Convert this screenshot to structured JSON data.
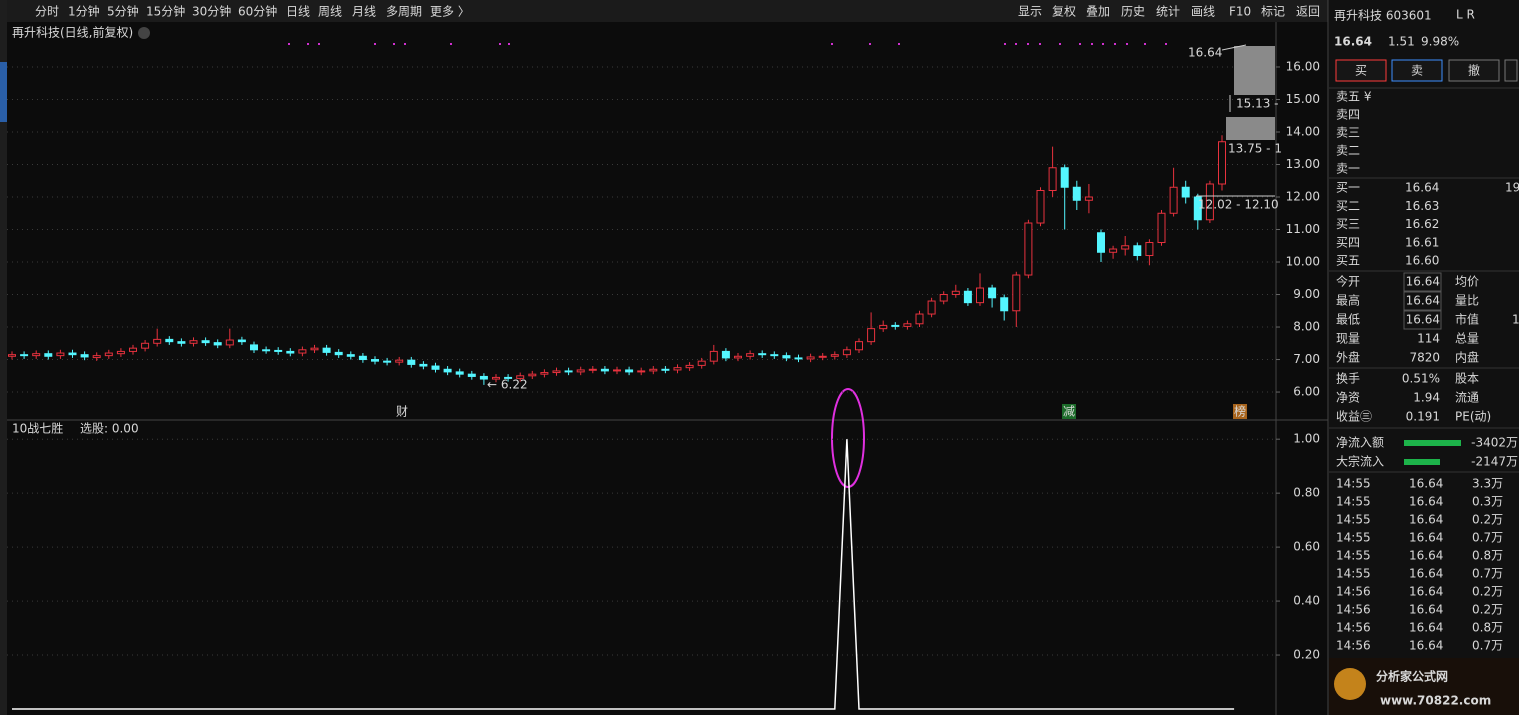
{
  "toolbar": {
    "periods": [
      "分时",
      "1分钟",
      "5分钟",
      "15分钟",
      "30分钟",
      "60分钟",
      "日线",
      "周线",
      "月线",
      "多周期",
      "更多 〉"
    ],
    "active_period": 6,
    "tools": [
      "显示",
      "复权",
      "叠加",
      "历史",
      "统计",
      "画线",
      "F10",
      "标记",
      "返回"
    ]
  },
  "chart_data": [
    {
      "type": "candlestick",
      "title": "再升科技(日线,前复权)",
      "open": [
        7.1,
        7.15,
        7.12,
        7.18,
        7.12,
        7.2,
        7.15,
        7.06,
        7.12,
        7.18,
        7.25,
        7.35,
        7.5,
        7.62,
        7.55,
        7.5,
        7.58,
        7.52,
        7.45,
        7.6,
        7.45,
        7.3,
        7.28,
        7.25,
        7.2,
        7.3,
        7.35,
        7.22,
        7.15,
        7.1,
        7.0,
        6.95,
        6.92,
        6.98,
        6.85,
        6.8,
        6.7,
        6.62,
        6.55,
        6.48,
        6.4,
        6.45,
        6.42,
        6.5,
        6.55,
        6.6,
        6.65,
        6.62,
        6.68,
        6.7,
        6.65,
        6.68,
        6.62,
        6.65,
        6.7,
        6.68,
        6.75,
        6.82,
        6.95,
        7.25,
        7.05,
        7.1,
        7.18,
        7.15,
        7.12,
        7.05,
        7.02,
        7.08,
        7.1,
        7.15,
        7.3,
        7.55,
        7.95,
        8.05,
        8.02,
        8.1,
        8.4,
        8.8,
        9.0,
        9.1,
        8.75,
        9.2,
        8.9,
        8.5,
        9.6,
        11.2,
        12.2,
        12.9,
        12.3,
        11.9,
        10.9,
        10.3,
        10.4,
        10.5,
        10.2,
        10.6,
        11.5,
        12.3,
        12.0,
        11.3,
        12.4
      ],
      "high": [
        7.25,
        7.25,
        7.28,
        7.28,
        7.3,
        7.3,
        7.25,
        7.22,
        7.3,
        7.35,
        7.45,
        7.6,
        7.95,
        7.72,
        7.65,
        7.68,
        7.68,
        7.62,
        7.95,
        7.7,
        7.55,
        7.4,
        7.38,
        7.35,
        7.4,
        7.45,
        7.45,
        7.32,
        7.25,
        7.2,
        7.1,
        7.05,
        7.08,
        7.08,
        6.95,
        6.9,
        6.8,
        6.72,
        6.65,
        6.58,
        6.55,
        6.55,
        6.6,
        6.65,
        6.7,
        6.75,
        6.75,
        6.78,
        6.8,
        6.8,
        6.78,
        6.78,
        6.75,
        6.8,
        6.8,
        6.85,
        6.92,
        7.05,
        7.45,
        7.35,
        7.2,
        7.28,
        7.28,
        7.25,
        7.22,
        7.15,
        7.18,
        7.2,
        7.25,
        7.4,
        7.65,
        8.45,
        8.2,
        8.15,
        8.2,
        8.5,
        8.9,
        9.1,
        9.3,
        9.2,
        9.65,
        9.3,
        9.0,
        9.7,
        11.3,
        12.3,
        13.55,
        13.0,
        12.5,
        12.4,
        11.0,
        10.5,
        10.8,
        10.6,
        10.7,
        11.6,
        12.9,
        12.5,
        12.1,
        12.5,
        13.9
      ],
      "low": [
        7.0,
        7.02,
        7.02,
        7.0,
        7.02,
        7.05,
        6.98,
        6.96,
        7.02,
        7.08,
        7.15,
        7.25,
        7.4,
        7.45,
        7.4,
        7.4,
        7.42,
        7.35,
        7.35,
        7.45,
        7.2,
        7.18,
        7.15,
        7.1,
        7.1,
        7.2,
        7.12,
        7.05,
        7.0,
        6.9,
        6.85,
        6.82,
        6.82,
        6.75,
        6.7,
        6.6,
        6.52,
        6.45,
        6.38,
        6.22,
        6.3,
        6.32,
        6.32,
        6.4,
        6.45,
        6.5,
        6.52,
        6.52,
        6.58,
        6.55,
        6.55,
        6.52,
        6.52,
        6.55,
        6.58,
        6.58,
        6.65,
        6.72,
        6.85,
        6.95,
        6.95,
        7.0,
        7.05,
        7.02,
        6.95,
        6.92,
        6.92,
        6.98,
        7.0,
        7.05,
        7.2,
        7.45,
        7.85,
        7.92,
        7.92,
        8.0,
        8.3,
        8.7,
        8.9,
        8.65,
        8.65,
        8.6,
        8.2,
        8.0,
        9.5,
        11.1,
        12.0,
        11.0,
        11.6,
        11.5,
        10.0,
        10.1,
        10.2,
        10.05,
        9.9,
        10.5,
        11.4,
        11.8,
        11.0,
        11.2,
        12.2
      ],
      "close": [
        7.15,
        7.12,
        7.18,
        7.1,
        7.2,
        7.15,
        7.08,
        7.12,
        7.2,
        7.25,
        7.35,
        7.5,
        7.62,
        7.55,
        7.5,
        7.58,
        7.52,
        7.45,
        7.6,
        7.55,
        7.3,
        7.28,
        7.25,
        7.2,
        7.3,
        7.35,
        7.22,
        7.15,
        7.1,
        7.0,
        6.95,
        6.92,
        6.98,
        6.85,
        6.8,
        6.7,
        6.62,
        6.55,
        6.48,
        6.4,
        6.45,
        6.42,
        6.5,
        6.55,
        6.6,
        6.65,
        6.62,
        6.68,
        6.7,
        6.65,
        6.68,
        6.62,
        6.65,
        6.7,
        6.68,
        6.75,
        6.82,
        6.95,
        7.25,
        7.05,
        7.1,
        7.18,
        7.15,
        7.12,
        7.05,
        7.02,
        7.08,
        7.1,
        7.15,
        7.3,
        7.55,
        7.95,
        8.05,
        8.02,
        8.1,
        8.4,
        8.8,
        9.0,
        9.1,
        8.75,
        9.2,
        8.9,
        8.5,
        9.6,
        11.2,
        12.2,
        12.9,
        12.3,
        11.9,
        12.0,
        10.3,
        10.4,
        10.5,
        10.2,
        10.6,
        11.5,
        12.3,
        12.0,
        11.3,
        12.4,
        13.7
      ],
      "up_color": "#e8323e",
      "down_color": "#54f6ff",
      "ylim": [
        5.14,
        16.83
      ],
      "yticks": [
        {
          "value": 6,
          "label": "6.00"
        },
        {
          "value": 7,
          "label": "7.00"
        },
        {
          "value": 8,
          "label": "8.00"
        },
        {
          "value": 9,
          "label": "9.00"
        },
        {
          "value": 10,
          "label": "10.00"
        },
        {
          "value": 11,
          "label": "11.00"
        },
        {
          "value": 12,
          "label": "12.00"
        },
        {
          "value": 13,
          "label": "13.00"
        },
        {
          "value": 14,
          "label": "14.00"
        },
        {
          "value": 15,
          "label": "15.00"
        },
        {
          "value": 16,
          "label": "16.00"
        }
      ],
      "grid": true,
      "annotations": [
        "16.64",
        "15.13 -",
        "13.75 - 1",
        "12.02 - 12.10",
        "← 6.22"
      ],
      "markers": [
        "财",
        "减",
        "榜"
      ]
    },
    {
      "type": "line",
      "title": "10战七胜",
      "subtitle": "选股: 0.00",
      "color": "#ffffff",
      "values": [
        0,
        0,
        0,
        0,
        0,
        0,
        0,
        0,
        0,
        0,
        0,
        0,
        0,
        0,
        0,
        0,
        0,
        0,
        0,
        0,
        0,
        0,
        0,
        0,
        0,
        0,
        0,
        0,
        0,
        0,
        0,
        0,
        0,
        0,
        0,
        0,
        0,
        0,
        0,
        0,
        0,
        0,
        0,
        0,
        0,
        0,
        0,
        0,
        0,
        0,
        0,
        0,
        0,
        0,
        0,
        0,
        0,
        0,
        0,
        0,
        0,
        0,
        0,
        0,
        0,
        0,
        0,
        0,
        0,
        1,
        0,
        0,
        0,
        0,
        0,
        0,
        0,
        0,
        0,
        0,
        0,
        0,
        0,
        0,
        0,
        0,
        0,
        0,
        0,
        0,
        0,
        0,
        0,
        0,
        0,
        0,
        0,
        0,
        0,
        0,
        0,
        0
      ],
      "ylim": [
        0,
        1.06
      ],
      "yticks": [
        {
          "value": 0.2,
          "label": "0.20"
        },
        {
          "value": 0.4,
          "label": "0.40"
        },
        {
          "value": 0.6,
          "label": "0.60"
        },
        {
          "value": 0.8,
          "label": "0.80"
        },
        {
          "value": 1,
          "label": "1.00"
        }
      ],
      "grid": true
    }
  ],
  "quote": {
    "name": "再升科技 603601",
    "badge": "L R",
    "price": "16.64",
    "change": "1.51",
    "change_pct": "9.98%",
    "buttons": [
      "买",
      "卖",
      "撤"
    ],
    "asks": [
      "卖五 ¥",
      "卖四",
      "卖三",
      "卖二",
      "卖一"
    ],
    "bids": [
      [
        "买一",
        "16.64",
        "19"
      ],
      [
        "买二",
        "16.63"
      ],
      [
        "买三",
        "16.62"
      ],
      [
        "买四",
        "16.61"
      ],
      [
        "买五",
        "16.60"
      ]
    ],
    "stats": [
      [
        "今开",
        "16.64",
        "均价"
      ],
      [
        "最高",
        "16.64",
        "量比"
      ],
      [
        "最低",
        "16.64",
        "市值",
        "1"
      ],
      [
        "现量",
        "114",
        "总量"
      ],
      [
        "外盘",
        "7820",
        "内盘"
      ],
      [
        "换手",
        "0.51%",
        "股本"
      ],
      [
        "净资",
        "1.94",
        "流通"
      ],
      [
        "收益㊂",
        "0.191",
        "PE(动)"
      ]
    ],
    "flows": [
      [
        "净流入额",
        "-3402万"
      ],
      [
        "大宗流入",
        "-2147万"
      ]
    ],
    "trades": [
      [
        "14:55",
        "16.64",
        "3.3万"
      ],
      [
        "14:55",
        "16.64",
        "0.3万"
      ],
      [
        "14:55",
        "16.64",
        "0.2万"
      ],
      [
        "14:55",
        "16.64",
        "0.7万"
      ],
      [
        "14:55",
        "16.64",
        "0.8万"
      ],
      [
        "14:55",
        "16.64",
        "0.7万"
      ],
      [
        "14:56",
        "16.64",
        "0.2万"
      ],
      [
        "14:56",
        "16.64",
        "0.2万"
      ],
      [
        "14:56",
        "16.64",
        "0.8万"
      ],
      [
        "14:56",
        "16.64",
        "0.7万"
      ]
    ]
  },
  "watermark": {
    "title": "分析家公式网",
    "url": "www.70822.com"
  }
}
